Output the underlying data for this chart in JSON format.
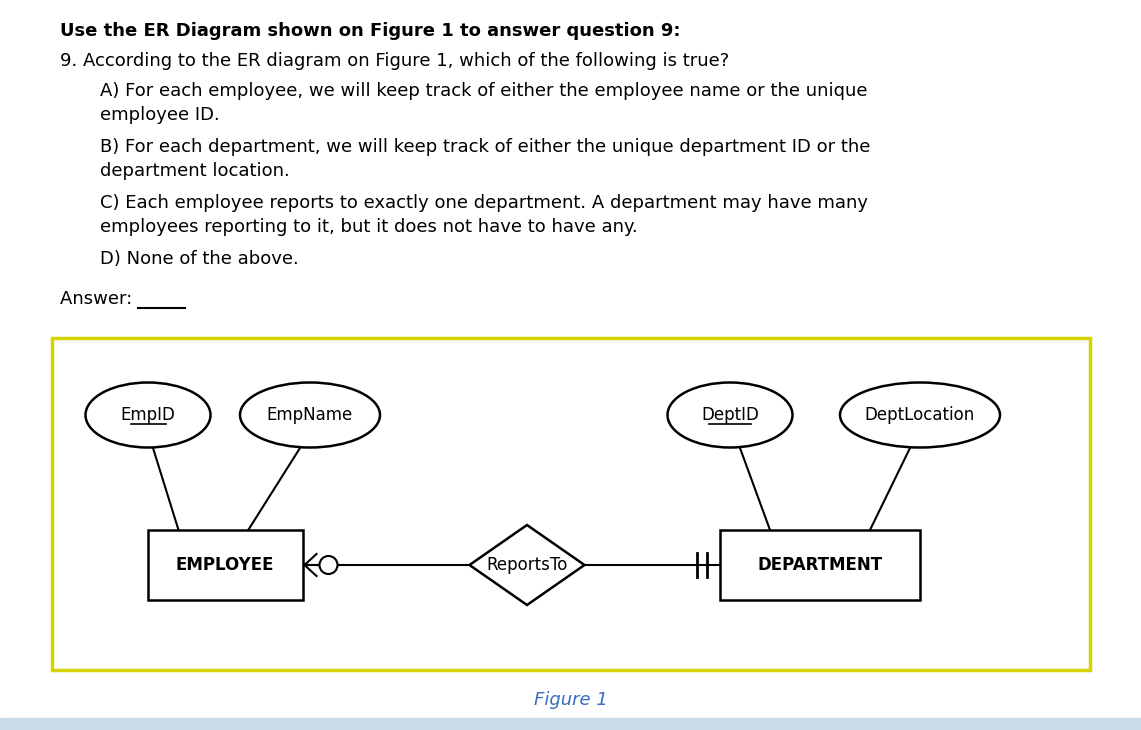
{
  "bg_color": "#ffffff",
  "text_color": "#000000",
  "figure1_label_color": "#3a6bbf",
  "diagram_border_color": "#d4d400",
  "title_text": "Use the ER Diagram shown on Figure 1 to answer question 9:",
  "question_text": "9. According to the ER diagram on Figure 1, which of the following is true?",
  "option_A_line1": "A) For each employee, we will keep track of either the employee name or the unique",
  "option_A_line2": "employee ID.",
  "option_B_line1": "B) For each department, we will keep track of either the unique department ID or the",
  "option_B_line2": "department location.",
  "option_C_line1": "C) Each employee reports to exactly one department. A department may have many",
  "option_C_line2": "employees reporting to it, but it does not have to have any.",
  "option_D": "D) None of the above.",
  "answer_text": "Answer: ____",
  "figure_label": "Figure 1",
  "employee_label": "EMPLOYEE",
  "department_label": "DEPARTMENT",
  "reports_to_label": "ReportsTo",
  "empid_label": "EmpID",
  "empname_label": "EmpName",
  "deptid_label": "DeptID",
  "deptlocation_label": "DeptLocation",
  "title_fontsize": 13,
  "body_fontsize": 13,
  "diagram_fontsize": 12,
  "attr_fontsize": 12
}
